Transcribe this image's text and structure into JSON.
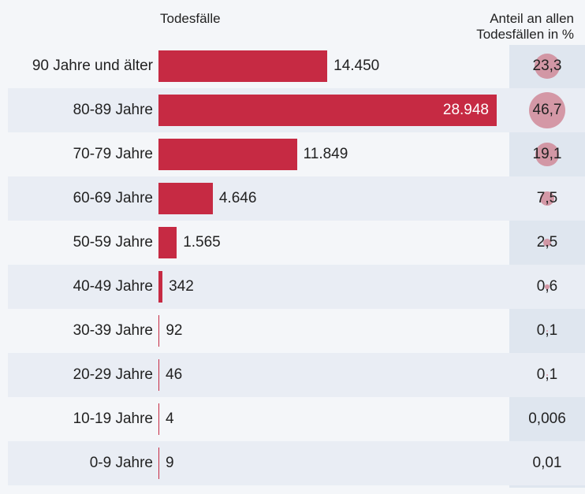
{
  "headers": {
    "deaths": "Todesfälle",
    "share_line1": "Anteil an allen",
    "share_line2": "Todesfällen in %"
  },
  "colors": {
    "bar": "#c62a43",
    "bubble": "#d08898",
    "row_alt": "#e9edf4",
    "share_column": "#dfe6ef",
    "background": "#f4f6f9"
  },
  "chart_data": {
    "type": "bar",
    "orientation": "horizontal",
    "categories": [
      "90 Jahre und älter",
      "80-89 Jahre",
      "70-79 Jahre",
      "60-69 Jahre",
      "50-59 Jahre",
      "40-49 Jahre",
      "30-39 Jahre",
      "20-29 Jahre",
      "10-19 Jahre",
      "0-9 Jahre"
    ],
    "values": [
      14450,
      28948,
      11849,
      4646,
      1565,
      342,
      92,
      46,
      4,
      9
    ],
    "value_labels": [
      "14.450",
      "28.948",
      "11.849",
      "4.646",
      "1.565",
      "342",
      "92",
      "46",
      "4",
      "9"
    ],
    "share_percent": [
      23.3,
      46.7,
      19.1,
      7.5,
      2.5,
      0.6,
      0.1,
      0.1,
      0.006,
      0.01
    ],
    "share_labels": [
      "23,3",
      "46,7",
      "19,1",
      "7,5",
      "2,5",
      "0,6",
      "0,1",
      "0,1",
      "0,006",
      "0,01"
    ],
    "xlim": [
      0,
      28948
    ],
    "grid": false,
    "legend": "none"
  }
}
